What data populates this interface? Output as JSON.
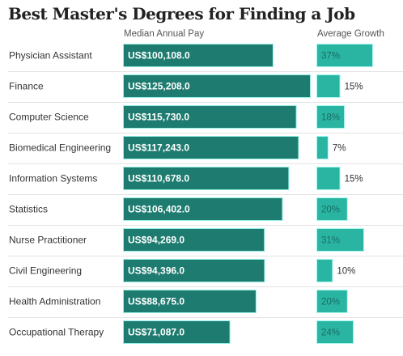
{
  "title": "Best Master's Degrees for Finding a Job",
  "headers": {
    "pay": "Median Annual Pay",
    "growth": "Average Growth"
  },
  "colors": {
    "pay_bar": "#1e7b70",
    "pay_glow": "#3ee0d0",
    "growth_bar": "#2ab5a3",
    "growth_glow": "#5ff0e0",
    "divider": "#e3e3e3"
  },
  "chart_data": {
    "type": "bar",
    "title": "Best Master's Degrees for Finding a Job",
    "categories": [
      "Physician Assistant",
      "Finance",
      "Computer Science",
      "Biomedical Engineering",
      "Information Systems",
      "Statistics",
      "Nurse Practitioner",
      "Civil Engineering",
      "Health Administration",
      "Occupational Therapy"
    ],
    "series": [
      {
        "name": "Median Annual Pay",
        "values": [
          100108.0,
          125208.0,
          115730.0,
          117243.0,
          110678.0,
          106402.0,
          94269.0,
          94396.0,
          88675.0,
          71087.0
        ],
        "labels": [
          "US$100,108.0",
          "US$125,208.0",
          "US$115,730.0",
          "US$117,243.0",
          "US$110,678.0",
          "US$106,402.0",
          "US$94,269.0",
          "US$94,396.0",
          "US$88,675.0",
          "US$71,087.0"
        ]
      },
      {
        "name": "Average Growth",
        "values": [
          37,
          15,
          18,
          7,
          15,
          20,
          31,
          10,
          20,
          24
        ],
        "labels": [
          "37%",
          "15%",
          "18%",
          "7%",
          "15%",
          "20%",
          "31%",
          "10%",
          "20%",
          "24%"
        ]
      }
    ]
  }
}
